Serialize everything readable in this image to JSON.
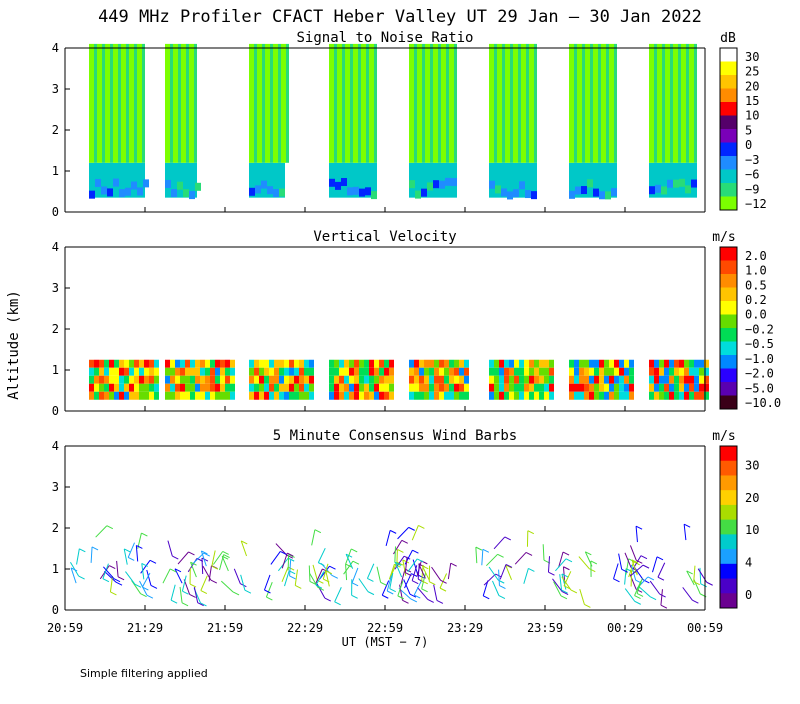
{
  "title": "449 MHz Profiler CFACT Heber Valley UT 29 Jan — 30 Jan 2022",
  "y_axis_label": "Altitude (km)",
  "x_axis_label": "UT  (MST − 7)",
  "footnote": "Simple filtering applied",
  "chart_data": [
    {
      "type": "heatmap",
      "title": "Signal to Noise Ratio",
      "ylim": [
        0,
        4
      ],
      "y_ticks": [
        "0",
        "1",
        "2",
        "3",
        "4"
      ],
      "x_tick_labels": [
        "20:59",
        "21:29",
        "21:59",
        "22:29",
        "22:59",
        "23:29",
        "23:59",
        "00:29",
        "00:59"
      ],
      "colorbar": {
        "unit": "dB",
        "labels": [
          "30",
          "25",
          "20",
          "15",
          "10",
          "5",
          "0",
          "−3",
          "−6",
          "−9",
          "−12"
        ],
        "colors": [
          "#ffffff",
          "#ffff00",
          "#ffc400",
          "#ff8c00",
          "#ff0000",
          "#55006a",
          "#7a00b8",
          "#0026ff",
          "#1f8cff",
          "#00c8c8",
          "#28dc78",
          "#7cff00"
        ]
      },
      "data_blocks": [
        [
          0.3,
          1.0
        ],
        [
          1.25,
          1.65
        ],
        [
          2.3,
          2.75
        ],
        [
          3.3,
          3.9
        ],
        [
          4.3,
          4.9
        ],
        [
          5.3,
          5.9
        ],
        [
          6.3,
          6.9
        ],
        [
          7.3,
          7.9
        ]
      ],
      "data_bottom_km": 0.35,
      "data_top_km": 4.1
    },
    {
      "type": "heatmap",
      "title": "Vertical Velocity",
      "ylim": [
        0,
        4
      ],
      "y_ticks": [
        "0",
        "1",
        "2",
        "3",
        "4"
      ],
      "x_tick_labels": [
        "20:59",
        "21:29",
        "21:59",
        "22:29",
        "22:59",
        "23:29",
        "23:59",
        "00:29",
        "00:59"
      ],
      "colorbar": {
        "unit": "m/s",
        "labels": [
          "2.0",
          "1.0",
          "0.5",
          "0.2",
          "0.0",
          "−0.2",
          "−0.5",
          "−1.0",
          "−2.0",
          "−5.0",
          "−10.0"
        ],
        "colors": [
          "#ff0000",
          "#ff4a00",
          "#ff8c00",
          "#ffc400",
          "#ffff00",
          "#66dd00",
          "#00dd55",
          "#00dddd",
          "#0088ff",
          "#2a00ff",
          "#5a00b0",
          "#3a0018"
        ]
      },
      "data_blocks": [
        [
          0.3,
          1.15
        ],
        [
          1.25,
          2.1
        ],
        [
          2.3,
          3.1
        ],
        [
          3.3,
          4.1
        ],
        [
          4.3,
          5.05
        ],
        [
          5.3,
          6.1
        ],
        [
          6.3,
          7.1
        ],
        [
          7.3,
          8.0
        ]
      ],
      "data_bottom_km": 0.35,
      "data_top_km": 1.25
    },
    {
      "type": "scatter",
      "title": "5 Minute Consensus Wind Barbs",
      "ylim": [
        0,
        4
      ],
      "y_ticks": [
        "0",
        "1",
        "2",
        "3",
        "4"
      ],
      "x_tick_labels": [
        "20:59",
        "21:29",
        "21:59",
        "22:29",
        "22:59",
        "23:29",
        "23:59",
        "00:29",
        "00:59"
      ],
      "colorbar": {
        "unit": "m/s",
        "labels": [
          "30",
          "20",
          "10",
          "4",
          "0"
        ],
        "colors": [
          "#ff0000",
          "#ff5a00",
          "#ff9a00",
          "#ffd000",
          "#aadd00",
          "#44dd44",
          "#00cccc",
          "#1aa0ff",
          "#0000ff",
          "#4a00c8",
          "#6a0090"
        ]
      },
      "altitude_range_km": [
        0.5,
        1.8
      ]
    }
  ]
}
